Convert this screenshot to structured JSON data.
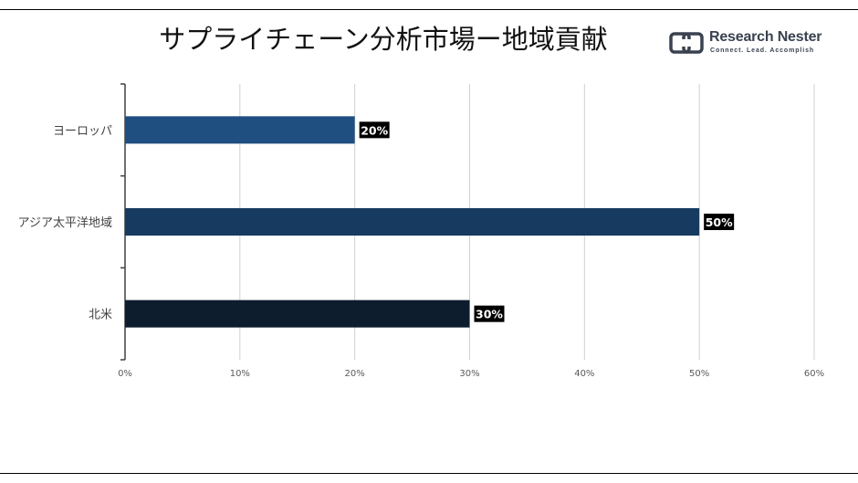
{
  "header": {
    "title": "サプライチェーン分析市場ー地域貢献"
  },
  "logo": {
    "name": "Research Nester",
    "tagline": "Connect. Lead. Accomplish",
    "mark_icon": "research-nester-logo-mark",
    "color": "#3a4250"
  },
  "chart_data": {
    "type": "bar",
    "orientation": "horizontal",
    "title": "サプライチェーン分析市場ー地域貢献",
    "xlabel": "",
    "ylabel": "",
    "categories": [
      "ヨーロッパ",
      "アジア太平洋地域",
      "北米"
    ],
    "values": [
      20,
      50,
      30
    ],
    "data_labels": [
      "20%",
      "50%",
      "30%"
    ],
    "bar_colors": [
      "#1f4e80",
      "#173a60",
      "#0e1d2e"
    ],
    "xlim": [
      0,
      60
    ],
    "x_ticks": [
      0,
      10,
      20,
      30,
      40,
      50,
      60
    ],
    "x_tick_labels": [
      "0%",
      "10%",
      "20%",
      "30%",
      "40%",
      "50%",
      "60%"
    ],
    "grid": "vertical",
    "legend": "none"
  }
}
